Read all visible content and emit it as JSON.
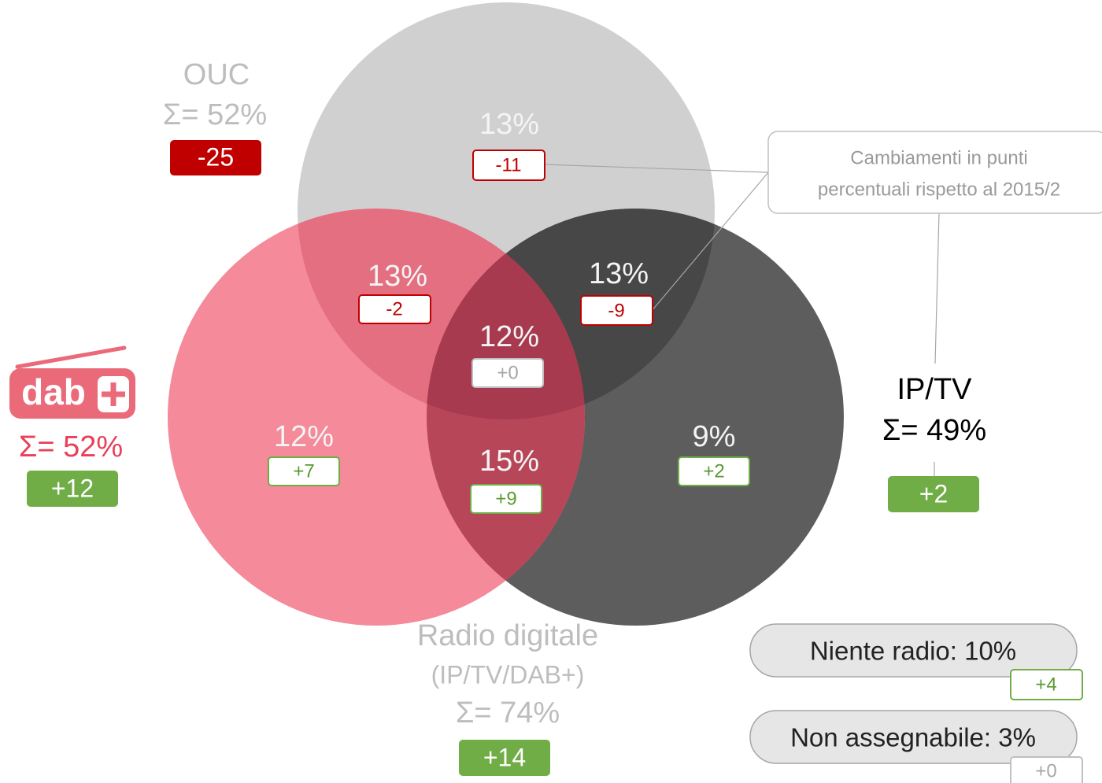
{
  "sets": [
    {
      "name": "OUC",
      "total": "Σ= 52%",
      "change": "-25"
    },
    {
      "logo": "dab",
      "total": "Σ= 52%",
      "change": "+12"
    },
    {
      "name": "IP/TV",
      "total": "Σ= 49%",
      "change": "+2"
    },
    {
      "name": "Radio digitale",
      "subtitle": "(IP/TV/DAB+)",
      "total": "Σ= 74%",
      "change": "+14"
    }
  ],
  "regions": [
    {
      "value": "13%",
      "change": "-11"
    },
    {
      "value": "13%",
      "change": "-2"
    },
    {
      "value": "13%",
      "change": "-9"
    },
    {
      "value": "12%",
      "change": "+0"
    },
    {
      "value": "12%",
      "change": "+7"
    },
    {
      "value": "15%",
      "change": "+9"
    },
    {
      "value": "9%",
      "change": "+2"
    }
  ],
  "note": [
    "Cambiamenti in punti",
    "percentuali rispetto al 2015/2"
  ],
  "extras": [
    {
      "label": "Niente radio: 10%",
      "change": "+4"
    },
    {
      "label": "Non assegnabile: 3%",
      "change": "+0"
    }
  ]
}
